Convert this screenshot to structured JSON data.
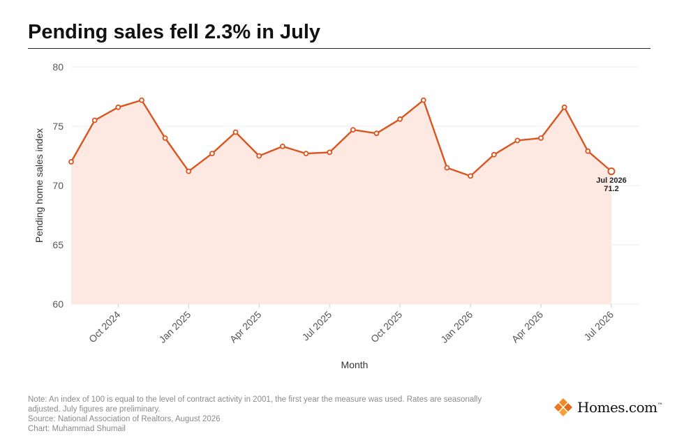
{
  "header": {
    "title": "Pending sales fell 2.3% in July"
  },
  "chart_data": {
    "type": "area",
    "xlabel": "Month",
    "ylabel": "Pending home sales index",
    "ylim": [
      60,
      80
    ],
    "yticks": [
      60,
      65,
      70,
      75,
      80
    ],
    "grid": true,
    "x_tick_labels": [
      "Oct 2024",
      "Jan 2025",
      "Apr 2025",
      "Jul 2025",
      "Oct 2025",
      "Jan 2026",
      "Apr 2026",
      "Jul 2026"
    ],
    "x_tick_indices": [
      2,
      5,
      8,
      11,
      14,
      17,
      20,
      23
    ],
    "x": [
      "Aug 2024",
      "Sep 2024",
      "Oct 2024",
      "Nov 2024",
      "Dec 2024",
      "Jan 2025",
      "Feb 2025",
      "Mar 2025",
      "Apr 2025",
      "May 2025",
      "Jun 2025",
      "Jul 2025",
      "Aug 2025",
      "Sep 2025",
      "Oct 2025",
      "Nov 2025",
      "Dec 2025",
      "Jan 2026",
      "Feb 2026",
      "Mar 2026",
      "Apr 2026",
      "May 2026",
      "Jun 2026",
      "Jul 2026"
    ],
    "values": [
      72.0,
      75.5,
      76.6,
      77.2,
      74.0,
      71.2,
      72.7,
      74.5,
      72.5,
      73.3,
      72.7,
      72.8,
      74.7,
      74.4,
      75.6,
      77.2,
      71.5,
      70.8,
      72.6,
      73.8,
      74.0,
      76.6,
      72.9,
      71.2
    ],
    "annotation": {
      "label": "Jul 2026",
      "value": "71.2"
    },
    "colors": {
      "line": "#d9541e",
      "fill": "#fde9e2",
      "grid": "#eeeeee"
    }
  },
  "footer": {
    "note_line1": "Note: An index of 100 is equal to the level of contract activity in 2001, the first year the measure was used. Rates are seasonally",
    "note_line2": "adjusted. July figures are preliminary.",
    "source": "Source: National Association of Realtors, August 2026",
    "credit": "Chart: Muhammad Shumail",
    "logo_text": "Homes.com",
    "logo_trademark": "™"
  }
}
